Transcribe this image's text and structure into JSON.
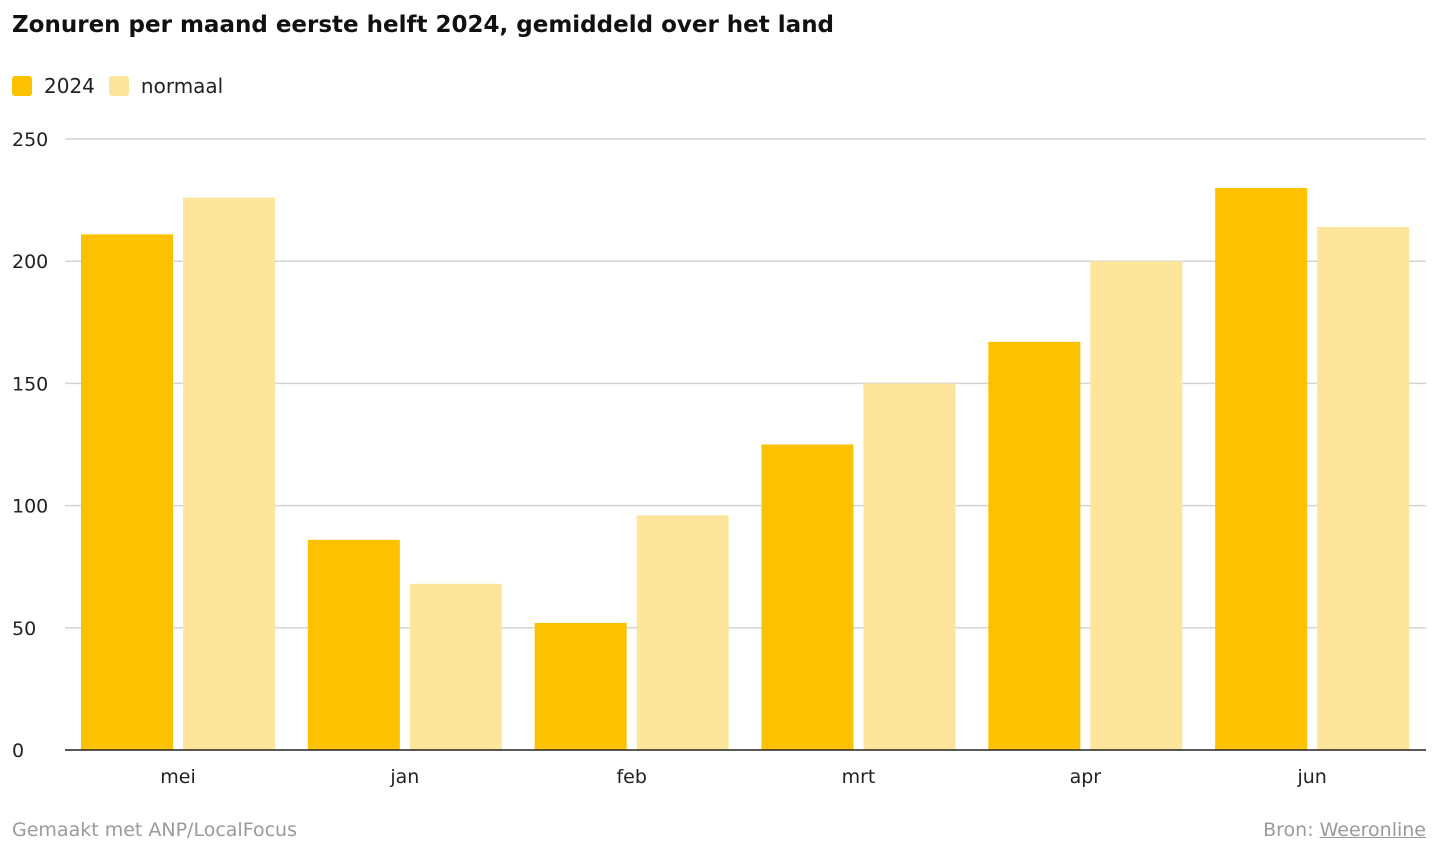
{
  "chart_data": {
    "type": "bar",
    "title": "Zonuren per maand eerste helft 2024, gemiddeld over het land",
    "categories": [
      "mei",
      "jan",
      "feb",
      "mrt",
      "apr",
      "jun"
    ],
    "series": [
      {
        "name": "2024",
        "color": "#fcc200",
        "values": [
          211,
          86,
          52,
          125,
          167,
          230
        ]
      },
      {
        "name": "normaal",
        "color": "#fde59c",
        "values": [
          226,
          68,
          96,
          150,
          200,
          214
        ]
      }
    ],
    "yticks": [
      0,
      50,
      100,
      150,
      200,
      250
    ],
    "ylim": [
      0,
      250
    ],
    "grid": true,
    "legend_position": "top-left"
  },
  "footer": {
    "credit": "Gemaakt met ANP/LocalFocus",
    "source_label": "Bron:",
    "source_link": "Weeronline"
  }
}
